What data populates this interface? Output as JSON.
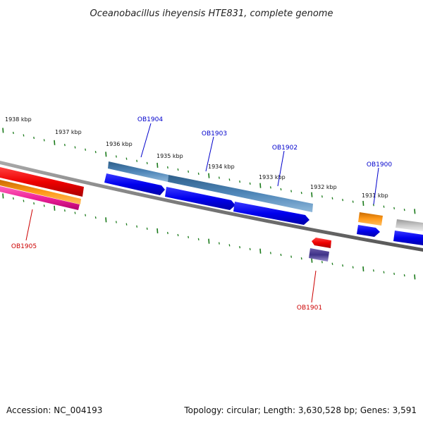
{
  "title": "Oceanobacillus iheyensis HTE831, complete genome",
  "footer": {
    "accession": "Accession: NC_004193",
    "summary": "Topology: circular; Length: 3,630,528 bp; Genes: 3,591"
  },
  "scale_labels": [
    "1938 kbp",
    "1937 kbp",
    "1936 kbp",
    "1935 kbp",
    "1934 kbp",
    "1933 kbp",
    "1932 kbp",
    "1931 kbp"
  ],
  "genes": [
    {
      "label": "OB1904",
      "strand": "forward"
    },
    {
      "label": "OB1903",
      "strand": "forward"
    },
    {
      "label": "OB1902",
      "strand": "forward"
    },
    {
      "label": "OB1900",
      "strand": "forward"
    },
    {
      "label": "OB1905",
      "strand": "reverse"
    },
    {
      "label": "OB1901",
      "strand": "reverse"
    }
  ],
  "colors": {
    "forward_label": "#0000cc",
    "reverse_label": "#cc0000",
    "ticks": "#1a7a1a",
    "backbone": "#777777"
  }
}
